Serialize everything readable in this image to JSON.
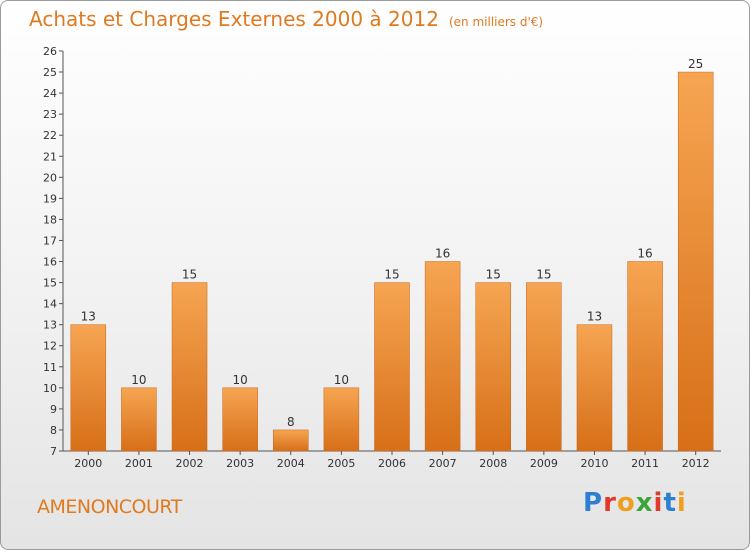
{
  "header": {
    "title": "Achats et Charges Externes 2000 à 2012",
    "unit": "(en milliers d'€)"
  },
  "commune": "AMENONCOURT",
  "logo": {
    "text": "Proxiti"
  },
  "colors": {
    "title": "#e07a20",
    "bar_top": "#f6a552",
    "bar_bottom": "#d76f18"
  },
  "chart_data": {
    "type": "bar",
    "title": "Achats et Charges Externes 2000 à 2012",
    "subtitle": "(en milliers d'€)",
    "categories": [
      "2000",
      "2001",
      "2002",
      "2003",
      "2004",
      "2005",
      "2006",
      "2007",
      "2008",
      "2009",
      "2010",
      "2011",
      "2012"
    ],
    "values": [
      13,
      10,
      15,
      10,
      8,
      10,
      15,
      16,
      15,
      15,
      13,
      16,
      25
    ],
    "ylim": [
      7,
      26
    ],
    "yticks": [
      7,
      8,
      9,
      10,
      11,
      12,
      13,
      14,
      15,
      16,
      17,
      18,
      19,
      20,
      21,
      22,
      23,
      24,
      25,
      26
    ],
    "grid": false,
    "data_labels": true
  }
}
